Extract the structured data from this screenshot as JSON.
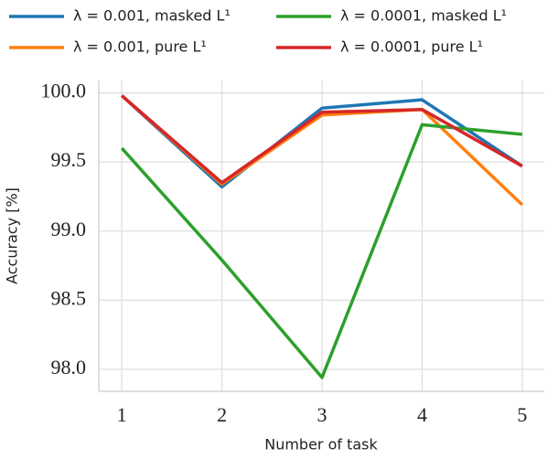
{
  "chart_data": {
    "type": "line",
    "x_label": "Number of task",
    "y_label": "Accuracy [%]",
    "x": [
      1,
      2,
      3,
      4,
      5
    ],
    "series": [
      {
        "name": "λ = 0.001, masked L¹",
        "color": "#1f77b4",
        "values": [
          99.98,
          99.32,
          99.89,
          99.95,
          99.47
        ]
      },
      {
        "name": "λ = 0.001, pure L¹",
        "color": "#ff7f0e",
        "values": [
          99.98,
          99.34,
          99.84,
          99.88,
          99.19
        ]
      },
      {
        "name": "λ = 0.0001, masked L¹",
        "color": "#2ca02c",
        "values": [
          99.6,
          98.79,
          97.94,
          99.77,
          99.7
        ]
      },
      {
        "name": "λ = 0.0001, pure L¹",
        "color": "#d62728",
        "values": [
          99.98,
          99.35,
          99.86,
          99.88,
          99.47
        ]
      }
    ],
    "xlim": [
      0.77,
      5.22
    ],
    "xticks": [
      1,
      2,
      3,
      4,
      5
    ],
    "ylim": [
      97.84,
      100.09
    ],
    "yticks": [
      {
        "value": 98,
        "label": "98.0"
      },
      98.5,
      {
        "value": 99,
        "label": "99.0"
      },
      99.5,
      {
        "value": 100,
        "label": "100.0"
      }
    ],
    "grid": true,
    "legend": "top"
  }
}
